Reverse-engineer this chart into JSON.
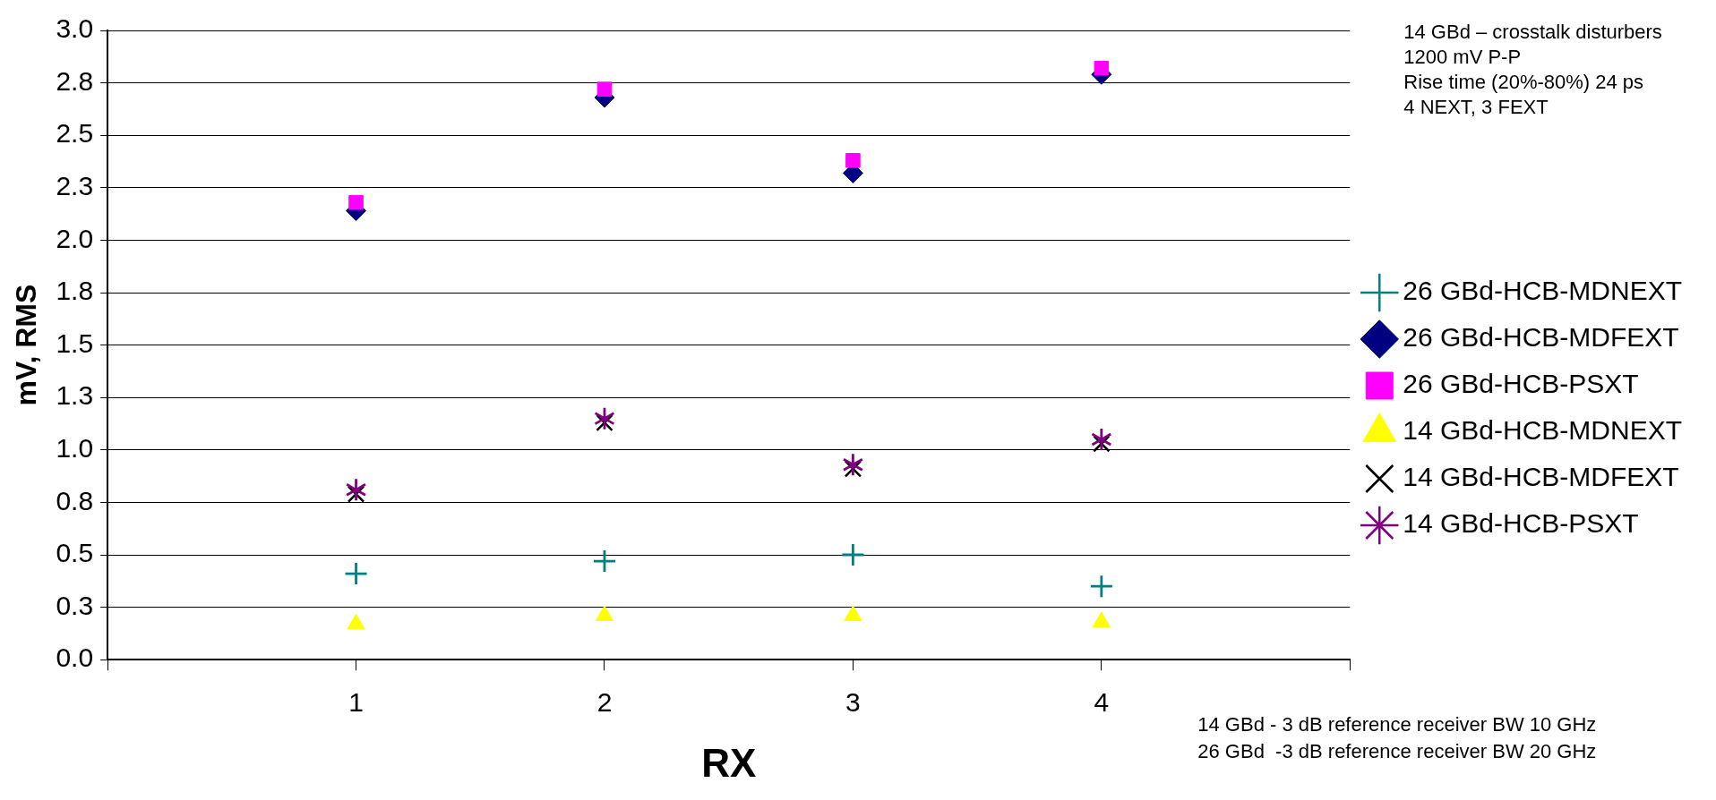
{
  "chart_data": {
    "type": "scatter",
    "xlabel": "RX",
    "ylabel": "mV, RMS",
    "x": [
      1,
      2,
      3,
      4
    ],
    "xlim": [
      0,
      5
    ],
    "xticks": [
      {
        "value": 0,
        "label": null
      },
      1,
      2,
      3,
      4,
      {
        "value": 5,
        "label": null
      }
    ],
    "ylim": [
      0,
      3
    ],
    "yticks": [
      {
        "value": 0,
        "label": "0.0"
      },
      {
        "value": 0.25,
        "label": "0.3"
      },
      {
        "value": 0.5,
        "label": "0.5"
      },
      {
        "value": 0.75,
        "label": "0.8"
      },
      {
        "value": 1,
        "label": "1.0"
      },
      {
        "value": 1.25,
        "label": "1.3"
      },
      {
        "value": 1.5,
        "label": "1.5"
      },
      {
        "value": 1.75,
        "label": "1.8"
      },
      {
        "value": 2,
        "label": "2.0"
      },
      {
        "value": 2.25,
        "label": "2.3"
      },
      {
        "value": 2.5,
        "label": "2.5"
      },
      {
        "value": 2.75,
        "label": "2.8"
      },
      {
        "value": 3,
        "label": "3.0"
      }
    ],
    "grid": "y",
    "legend": "right",
    "series": [
      {
        "name": "26 GBd-HCB-MDNEXT",
        "color": "#008080",
        "marker": "cross",
        "values": [
          0.41,
          0.47,
          0.5,
          0.35
        ]
      },
      {
        "name": "26 GBd-HCB-MDFEXT",
        "color": "#000080",
        "marker": "diamond",
        "values": [
          2.14,
          2.68,
          2.32,
          2.79
        ]
      },
      {
        "name": "26 GBd-HCB-PSXT",
        "color": "#ff00ff",
        "marker": "square",
        "values": [
          2.18,
          2.72,
          2.38,
          2.82
        ]
      },
      {
        "name": "14 GBd-HCB-MDNEXT",
        "color": "#ffff00",
        "marker": "triangle",
        "values": [
          0.17,
          0.21,
          0.21,
          0.18
        ]
      },
      {
        "name": "14 GBd-HCB-MDFEXT",
        "color": "#000000",
        "marker": "x",
        "values": [
          0.79,
          1.13,
          0.91,
          1.03
        ]
      },
      {
        "name": "14 GBd-HCB-PSXT",
        "color": "#800080",
        "marker": "star",
        "values": [
          0.81,
          1.15,
          0.93,
          1.05
        ]
      }
    ],
    "annotations": [
      "14 GBd – crosstalk disturbers",
      "1200 mV P-P",
      "Rise time (20%-80%) 24 ps",
      "4 NEXT, 3 FEXT",
      "14 GBd - 3 dB reference receiver BW 10 GHz",
      "26 GBd  -3 dB reference receiver BW 20 GHz"
    ]
  }
}
